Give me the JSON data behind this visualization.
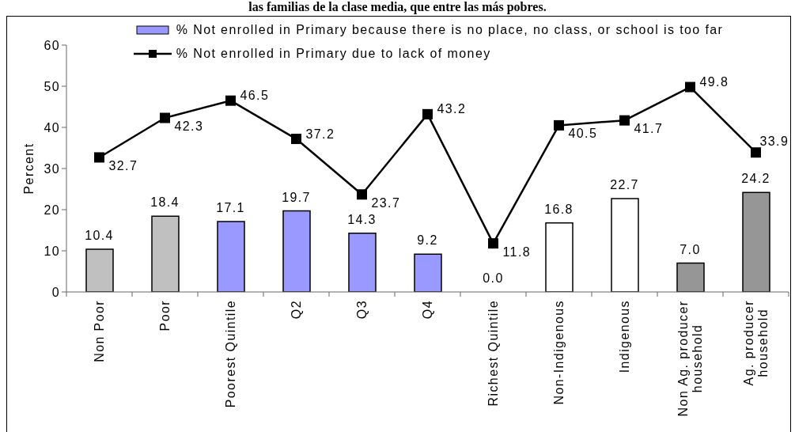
{
  "chart_data": {
    "type": "bar",
    "title": "las familias de la clase media, que entre las más pobres.",
    "ylabel": "Percent",
    "categories": [
      "Non Poor",
      "Poor",
      "Poorest Quintile",
      "Q2",
      "Q3",
      "Q4",
      "Richest Quintile",
      "Non-Indigenous",
      "Indigenous",
      "Non Ag. producer household",
      "Ag. producer household"
    ],
    "series": [
      {
        "name": "% Not enrolled in Primary because there is no place, no class, or school is too far",
        "color": "#9999ff",
        "colors": [
          "#c0c0c0",
          "#c0c0c0",
          "#9999ff",
          "#9999ff",
          "#9999ff",
          "#9999ff",
          "#9999ff",
          "#ffffff",
          "#ffffff",
          "#969696",
          "#969696"
        ],
        "values": [
          10.4,
          18.4,
          17.1,
          19.7,
          14.3,
          9.2,
          0.0,
          16.8,
          22.7,
          7.0,
          24.2
        ],
        "value_labels": [
          "10.4",
          "18.4",
          "17.1",
          "19.7",
          "14.3",
          "9.2",
          "0.0",
          "16.8",
          "22.7",
          "7.0",
          "24.2"
        ]
      },
      {
        "name": "% Not enrolled in Primary due to lack of money",
        "type": "line",
        "color": "#000000",
        "values": [
          32.7,
          42.3,
          46.5,
          37.2,
          23.7,
          43.2,
          11.8,
          40.5,
          41.7,
          49.8,
          33.9
        ],
        "value_labels": [
          "32.7",
          "42.3",
          "46.5",
          "37.2",
          "23.7",
          "43.2",
          "11.8",
          "40.5",
          "41.7",
          "49.8",
          "33.9"
        ]
      }
    ],
    "ylim": [
      0,
      60
    ],
    "yticks": [
      0,
      10,
      20,
      30,
      40,
      50,
      60
    ],
    "legend": "top",
    "marker": "square"
  }
}
